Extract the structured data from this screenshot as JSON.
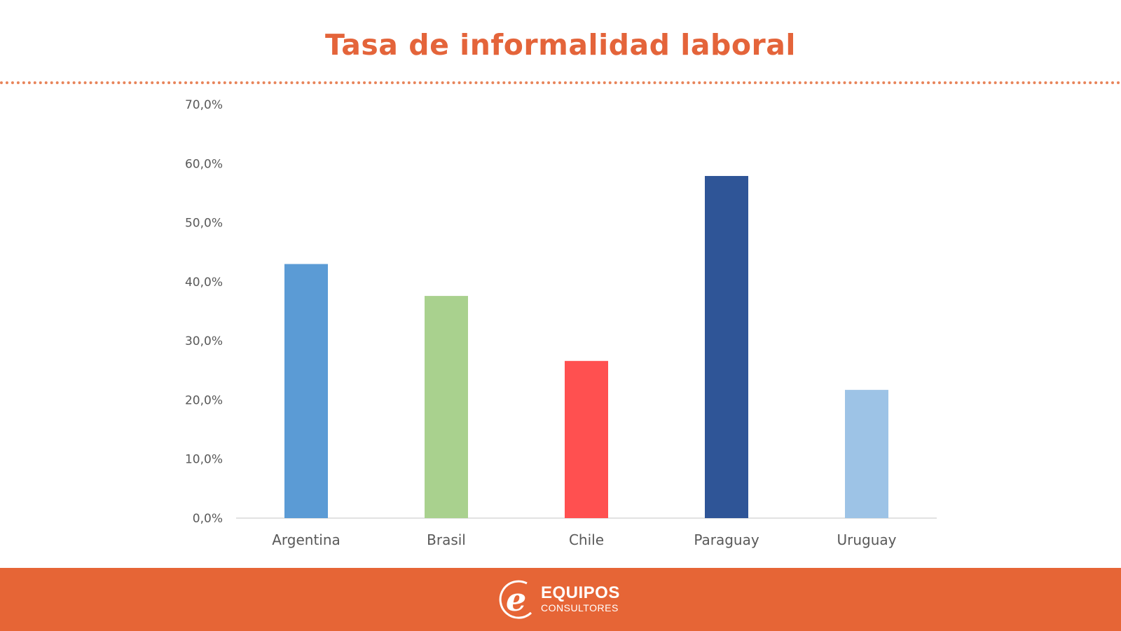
{
  "chart_data": {
    "type": "bar",
    "title": "Tasa de informalidad laboral",
    "categories": [
      "Argentina",
      "Brasil",
      "Chile",
      "Paraguay",
      "Uruguay"
    ],
    "values": [
      43.0,
      37.6,
      26.6,
      57.9,
      21.7
    ],
    "colors": [
      "#5B9BD5",
      "#A9D18E",
      "#FF5050",
      "#2F5597",
      "#9DC3E6"
    ],
    "yticks": [
      "0,0%",
      "10,0%",
      "20,0%",
      "30,0%",
      "40,0%",
      "50,0%",
      "60,0%",
      "70,0%"
    ],
    "ylim": [
      0,
      70
    ],
    "xlabel": "",
    "ylabel": "",
    "grid": false,
    "legend": "none"
  },
  "footer": {
    "logo_name": "EQUIPOS",
    "logo_sub": "CONSULTORES",
    "color": "#E66536"
  }
}
